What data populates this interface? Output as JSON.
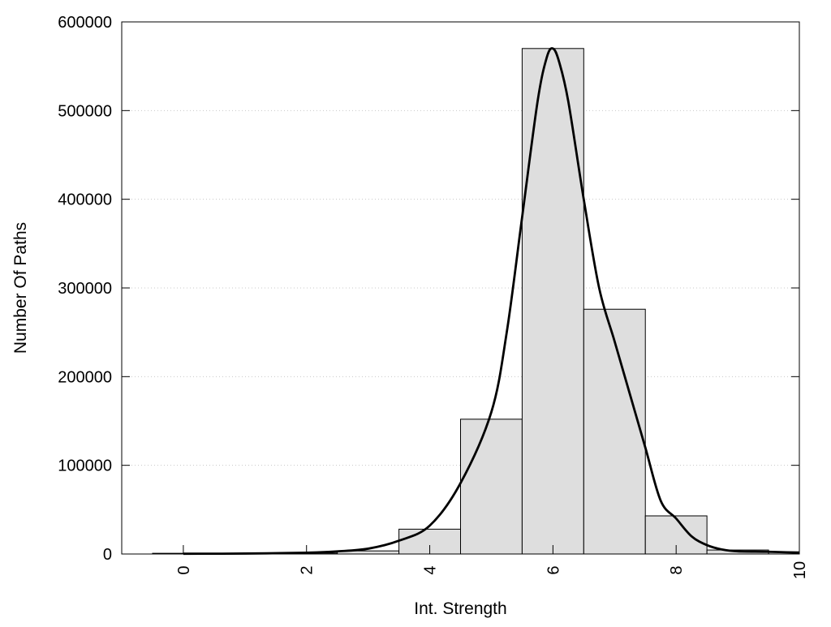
{
  "chart_data": {
    "type": "bar",
    "title": "",
    "xlabel": "Int. Strength",
    "ylabel": "Number Of Paths",
    "xlim": [
      -1,
      10
    ],
    "ylim": [
      0,
      600000
    ],
    "x_ticks": [
      "0",
      "2",
      "4",
      "6",
      "8",
      "10"
    ],
    "y_ticks": [
      "0",
      "100000",
      "200000",
      "300000",
      "400000",
      "500000",
      "600000"
    ],
    "grid": "horizontal dotted",
    "bar_color": "#dedede",
    "bars": [
      {
        "x": 0,
        "value": 800
      },
      {
        "x": 1,
        "value": 800
      },
      {
        "x": 2,
        "value": 1000
      },
      {
        "x": 3,
        "value": 3500
      },
      {
        "x": 4,
        "value": 28000
      },
      {
        "x": 5,
        "value": 152000
      },
      {
        "x": 6,
        "value": 570000
      },
      {
        "x": 7,
        "value": 276000
      },
      {
        "x": 8,
        "value": 43000
      },
      {
        "x": 9,
        "value": 4500
      },
      {
        "x": 10,
        "value": 2500
      }
    ],
    "curve": {
      "x": [
        0,
        1,
        2,
        2.5,
        3,
        3.5,
        4,
        4.5,
        5,
        5.25,
        5.5,
        5.75,
        5.9,
        6,
        6.1,
        6.25,
        6.5,
        6.75,
        7,
        7.25,
        7.5,
        7.75,
        8,
        8.25,
        8.5,
        8.75,
        9,
        9.5,
        10
      ],
      "y": [
        300,
        500,
        1500,
        3000,
        6000,
        15000,
        32000,
        80000,
        160000,
        250000,
        380000,
        510000,
        560000,
        570000,
        555000,
        510000,
        400000,
        300000,
        240000,
        180000,
        120000,
        60000,
        40000,
        20000,
        10000,
        5000,
        3000,
        2500,
        1500
      ]
    }
  }
}
